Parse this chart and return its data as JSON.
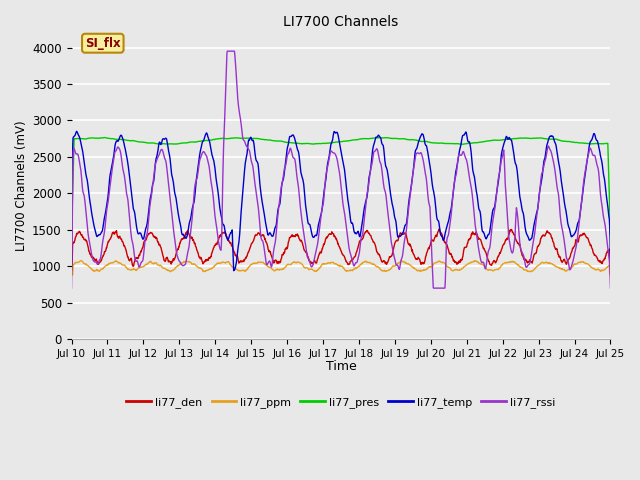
{
  "title": "LI7700 Channels",
  "xlabel": "Time",
  "ylabel": "LI7700 Channels (mV)",
  "ylim": [
    0,
    4200
  ],
  "yticks": [
    0,
    500,
    1000,
    1500,
    2000,
    2500,
    3000,
    3500,
    4000
  ],
  "x_tick_labels": [
    "Jul 10",
    "Jul 11",
    "Jul 12",
    "Jul 13",
    "Jul 14",
    "Jul 15",
    "Jul 16",
    "Jul 17",
    "Jul 18",
    "Jul 19",
    "Jul 20",
    "Jul 21",
    "Jul 22",
    "Jul 23",
    "Jul 24",
    "Jul 25"
  ],
  "bg_color": "#e8e8e8",
  "plot_bg_color": "#e8e8e8",
  "grid_color": "white",
  "annotation_text": "SI_flx",
  "annotation_bg": "#f5f0a0",
  "annotation_border": "#b8860b",
  "colors": {
    "li77_den": "#cc0000",
    "li77_ppm": "#e6a020",
    "li77_pres": "#00cc00",
    "li77_temp": "#0000cc",
    "li77_rssi": "#9933cc"
  },
  "legend_labels": [
    "li77_den",
    "li77_ppm",
    "li77_pres",
    "li77_temp",
    "li77_rssi"
  ]
}
